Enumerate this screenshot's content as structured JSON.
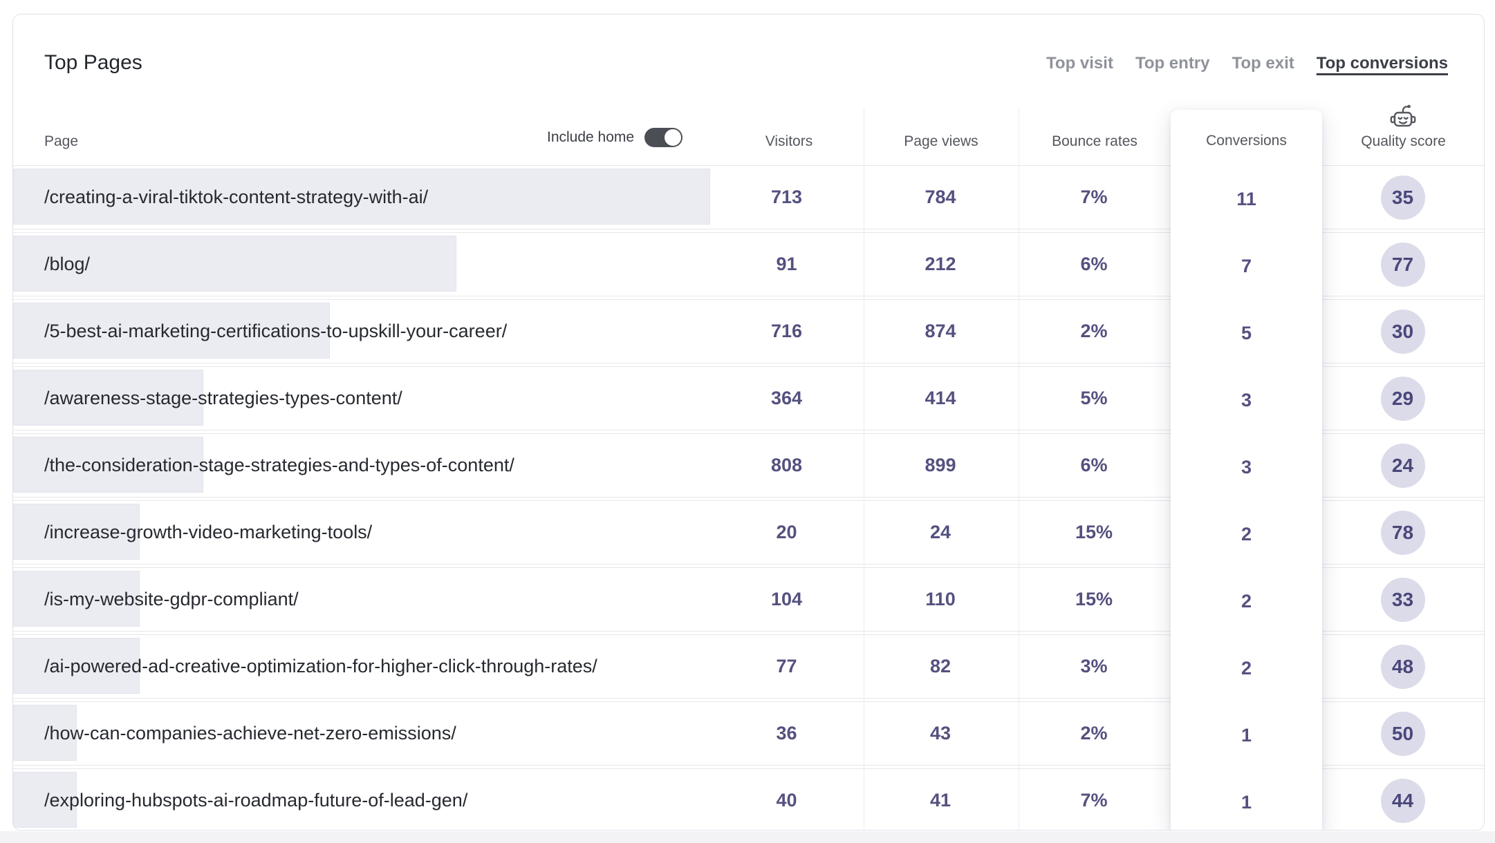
{
  "card": {
    "title": "Top Pages",
    "tabs": [
      {
        "label": "Top visit",
        "active": false
      },
      {
        "label": "Top entry",
        "active": false
      },
      {
        "label": "Top exit",
        "active": false
      },
      {
        "label": "Top conversions",
        "active": true
      }
    ],
    "include_home": {
      "label": "Include home",
      "state": "on"
    },
    "columns": {
      "page": "Page",
      "visitors": "Visitors",
      "page_views": "Page views",
      "bounce_rates": "Bounce rates",
      "conversions": "Conversions",
      "quality_score": "Quality score"
    },
    "quality_icon": "robot-icon",
    "max_conversions": 11,
    "rows": [
      {
        "page": "/creating-a-viral-tiktok-content-strategy-with-ai/",
        "visitors": 713,
        "page_views": 784,
        "bounce_rate": "7%",
        "conversions": 11,
        "quality_score": 35
      },
      {
        "page": "/blog/",
        "visitors": 91,
        "page_views": 212,
        "bounce_rate": "6%",
        "conversions": 7,
        "quality_score": 77
      },
      {
        "page": "/5-best-ai-marketing-certifications-to-upskill-your-career/",
        "visitors": 716,
        "page_views": 874,
        "bounce_rate": "2%",
        "conversions": 5,
        "quality_score": 30
      },
      {
        "page": "/awareness-stage-strategies-types-content/",
        "visitors": 364,
        "page_views": 414,
        "bounce_rate": "5%",
        "conversions": 3,
        "quality_score": 29
      },
      {
        "page": "/the-consideration-stage-strategies-and-types-of-content/",
        "visitors": 808,
        "page_views": 899,
        "bounce_rate": "6%",
        "conversions": 3,
        "quality_score": 24
      },
      {
        "page": "/increase-growth-video-marketing-tools/",
        "visitors": 20,
        "page_views": 24,
        "bounce_rate": "15%",
        "conversions": 2,
        "quality_score": 78
      },
      {
        "page": "/is-my-website-gdpr-compliant/",
        "visitors": 104,
        "page_views": 110,
        "bounce_rate": "15%",
        "conversions": 2,
        "quality_score": 33
      },
      {
        "page": "/ai-powered-ad-creative-optimization-for-higher-click-through-rates/",
        "visitors": 77,
        "page_views": 82,
        "bounce_rate": "3%",
        "conversions": 2,
        "quality_score": 48
      },
      {
        "page": "/how-can-companies-achieve-net-zero-emissions/",
        "visitors": 36,
        "page_views": 43,
        "bounce_rate": "2%",
        "conversions": 1,
        "quality_score": 50
      },
      {
        "page": "/exploring-hubspots-ai-roadmap-future-of-lead-gen/",
        "visitors": 40,
        "page_views": 41,
        "bounce_rate": "7%",
        "conversions": 1,
        "quality_score": 44
      }
    ],
    "colors": {
      "accent_text": "#54517f",
      "bar_fill": "#ebebf2",
      "badge_bg": "#dbdbe9",
      "badge_text": "#4a477b",
      "toggle_on": "#4b4e54",
      "active_tab": "#3b3e47",
      "inactive_tab": "#8f929a"
    }
  }
}
